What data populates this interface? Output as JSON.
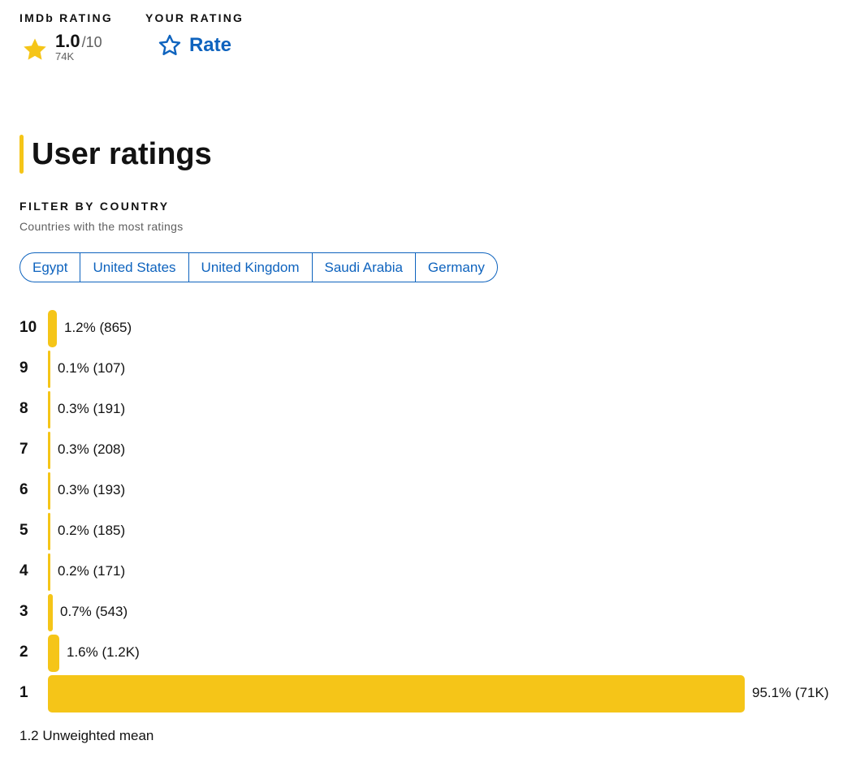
{
  "imdb_rating": {
    "label": "IMDb RATING",
    "score": "1.0",
    "max": "/10",
    "count": "74K",
    "star_icon": "filled-star-icon",
    "star_color": "#f5c518"
  },
  "your_rating": {
    "label": "YOUR RATING",
    "action_label": "Rate",
    "star_icon": "outline-star-icon",
    "accent_color": "#0e63be"
  },
  "section": {
    "title": "User ratings"
  },
  "filter": {
    "title": "FILTER BY COUNTRY",
    "subtitle": "Countries with the most ratings",
    "countries": [
      "Egypt",
      "United States",
      "United Kingdom",
      "Saudi Arabia",
      "Germany"
    ]
  },
  "histogram": {
    "bar_color": "#f5c518",
    "rows": [
      {
        "rating": "10",
        "percent": 1.2,
        "value_label": "1.2% (865)"
      },
      {
        "rating": "9",
        "percent": 0.1,
        "value_label": "0.1% (107)"
      },
      {
        "rating": "8",
        "percent": 0.3,
        "value_label": "0.3% (191)"
      },
      {
        "rating": "7",
        "percent": 0.3,
        "value_label": "0.3% (208)"
      },
      {
        "rating": "6",
        "percent": 0.3,
        "value_label": "0.3% (193)"
      },
      {
        "rating": "5",
        "percent": 0.2,
        "value_label": "0.2% (185)"
      },
      {
        "rating": "4",
        "percent": 0.2,
        "value_label": "0.2% (171)"
      },
      {
        "rating": "3",
        "percent": 0.7,
        "value_label": "0.7% (543)"
      },
      {
        "rating": "2",
        "percent": 1.6,
        "value_label": "1.6% (1.2K)"
      },
      {
        "rating": "1",
        "percent": 95.1,
        "value_label": "95.1% (71K)"
      }
    ]
  },
  "mean": {
    "text": "1.2 Unweighted mean"
  }
}
